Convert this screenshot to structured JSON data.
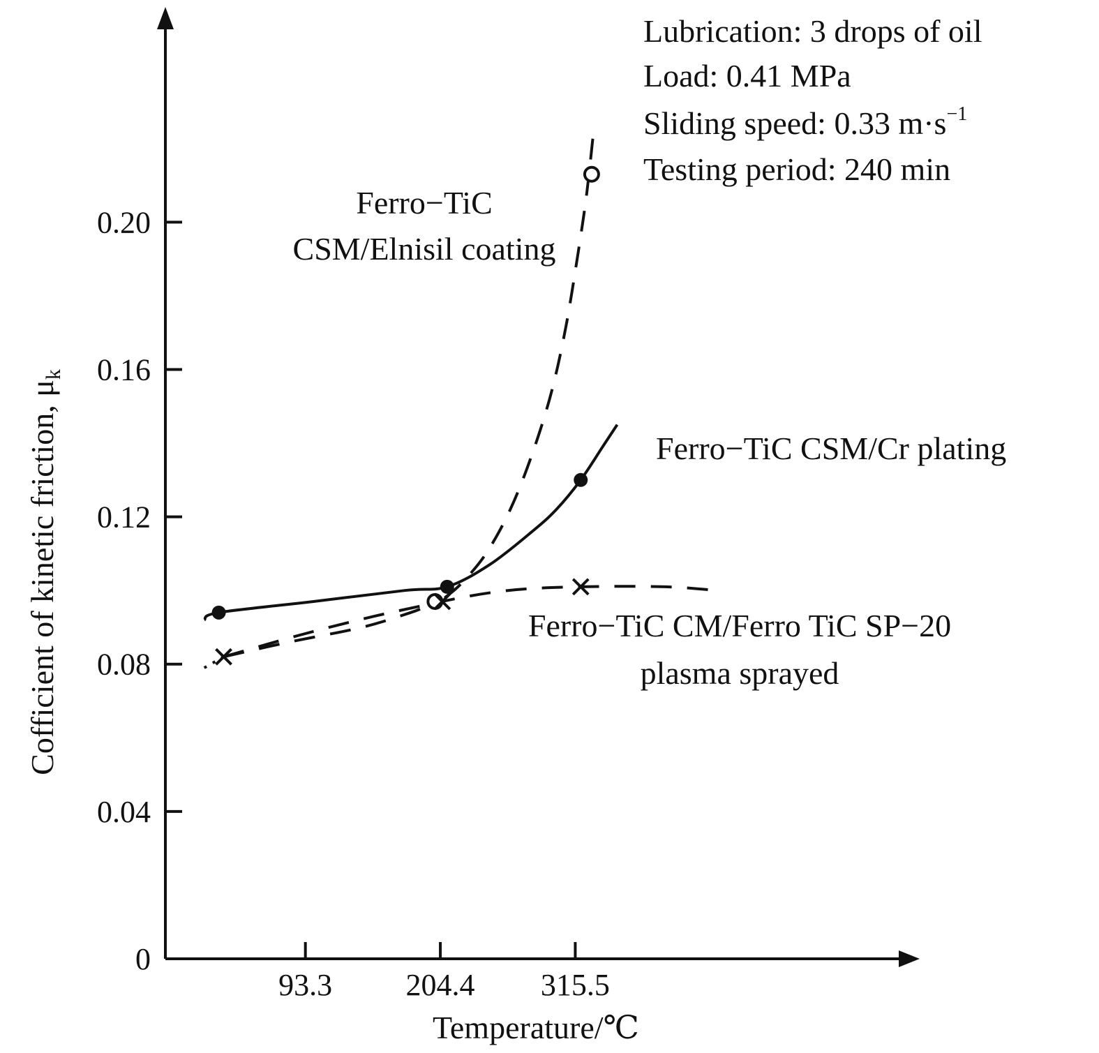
{
  "chart_data": {
    "type": "line",
    "xlabel": "Temperature/℃",
    "ylabel": "Cofficient of kinetic friction, μ",
    "ylabel_sub": "k",
    "x_ticks": [
      93.3,
      204.4,
      315.5
    ],
    "y_ticks": [
      "0",
      "0.04",
      "0.08",
      "0.12",
      "0.16",
      "0.20"
    ],
    "xlim": [
      -22,
      583
    ],
    "ylim": [
      0,
      0.255
    ],
    "grid": false,
    "annotations": {
      "conditions": [
        "Lubrication: 3 drops of oil",
        "Load: 0.41 MPa",
        "Sliding speed: 0.33 m·s",
        "Testing period: 240 min"
      ],
      "speed_exponent": "−1"
    },
    "series": [
      {
        "label_lines": [
          "Ferro−TiC",
          "CSM/Elnisil coating"
        ],
        "line_style": "dashed",
        "marker": "open-circle",
        "points": [
          [
            200,
            0.097
          ],
          [
            329,
            0.213
          ]
        ],
        "curve": [
          [
            208,
            0.098
          ],
          [
            222,
            0.102
          ],
          [
            242,
            0.11
          ],
          [
            262,
            0.122
          ],
          [
            280,
            0.137
          ],
          [
            296,
            0.154
          ],
          [
            308,
            0.172
          ],
          [
            318,
            0.192
          ],
          [
            325,
            0.208
          ],
          [
            331,
            0.226
          ]
        ]
      },
      {
        "label_lines": [
          "Ferro−TiC CSM/Cr plating"
        ],
        "line_style": "solid",
        "marker": "filled-circle",
        "points": [
          [
            22,
            0.094
          ],
          [
            210,
            0.101
          ],
          [
            320,
            0.13
          ]
        ],
        "curve": [
          [
            10,
            0.092
          ],
          [
            22,
            0.094
          ],
          [
            100,
            0.097
          ],
          [
            175,
            0.1
          ],
          [
            210,
            0.101
          ],
          [
            245,
            0.107
          ],
          [
            280,
            0.116
          ],
          [
            300,
            0.122
          ],
          [
            320,
            0.13
          ],
          [
            338,
            0.139
          ],
          [
            350,
            0.145
          ]
        ]
      },
      {
        "label_lines": [
          "Ferro−TiC CM/Ferro TiC SP−20",
          "plasma sprayed"
        ],
        "line_style": "dashed",
        "marker": "x",
        "points": [
          [
            26,
            0.082
          ],
          [
            206,
            0.097
          ],
          [
            320,
            0.101
          ]
        ],
        "curve": [
          [
            26,
            0.082
          ],
          [
            80,
            0.086
          ],
          [
            140,
            0.09
          ],
          [
            180,
            0.094
          ],
          [
            206,
            0.097
          ],
          [
            260,
            0.1
          ],
          [
            320,
            0.101
          ],
          [
            390,
            0.101
          ],
          [
            432,
            0.1
          ]
        ],
        "curve2": [
          [
            26,
            0.082
          ],
          [
            90,
            0.088
          ],
          [
            150,
            0.093
          ],
          [
            206,
            0.097
          ]
        ],
        "lead_in": [
          [
            10,
            0.079
          ],
          [
            26,
            0.082
          ]
        ]
      }
    ]
  }
}
